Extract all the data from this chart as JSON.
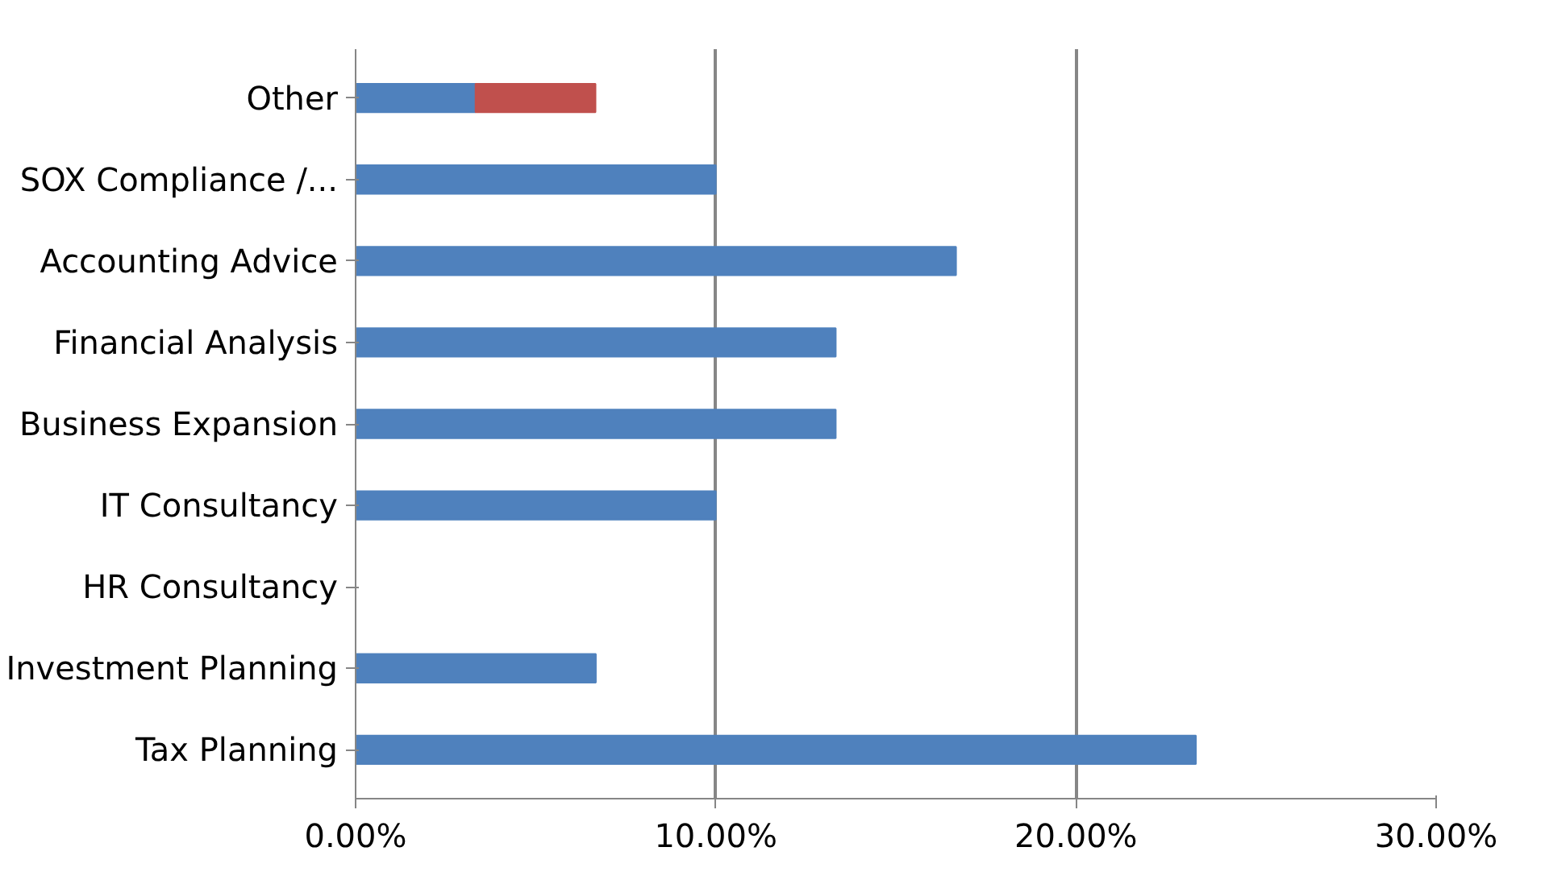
{
  "chart_data": {
    "type": "bar",
    "orientation": "horizontal",
    "stacked": true,
    "categories": [
      "Other",
      "SOX Compliance /...",
      "Accounting Advice",
      "Financial Analysis",
      "Business Expansion",
      "IT Consultancy",
      "HR Consultancy",
      "Investment Planning",
      "Tax Planning"
    ],
    "series": [
      {
        "color": "#4f81bd",
        "values": [
          3.33,
          10,
          16.67,
          13.33,
          13.33,
          10,
          0,
          6.67,
          23.33
        ]
      },
      {
        "color": "#c0504d",
        "values": [
          3.33,
          null,
          null,
          null,
          null,
          null,
          null,
          null,
          null
        ]
      }
    ],
    "xlim": [
      0,
      30
    ],
    "xticks": [
      {
        "value": 0,
        "label": "0.00%"
      },
      {
        "value": 10,
        "label": "10.00%"
      },
      {
        "value": 20,
        "label": "20.00%"
      },
      {
        "value": 30,
        "label": "30.00%"
      }
    ],
    "grid": "x"
  }
}
